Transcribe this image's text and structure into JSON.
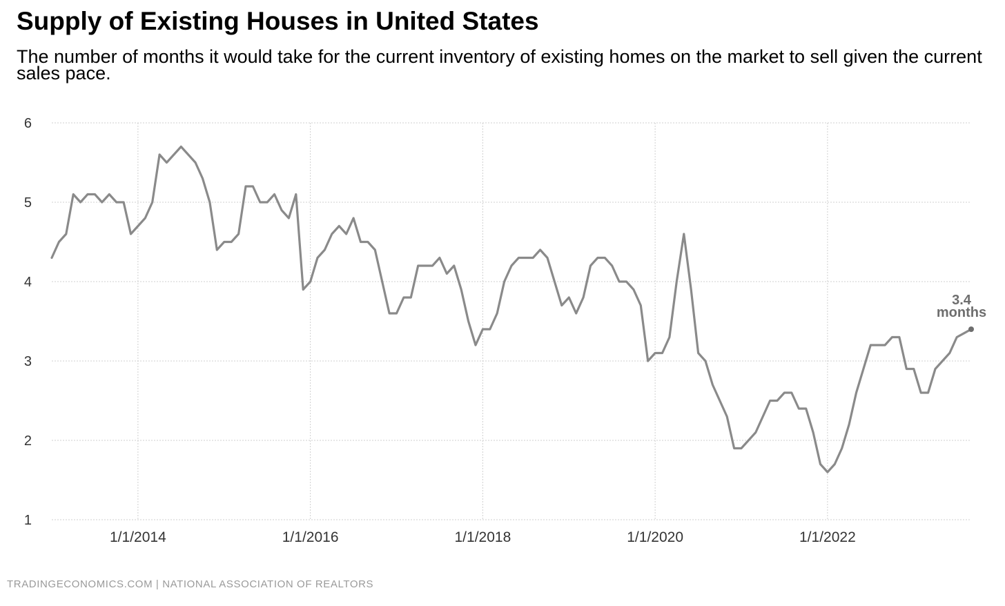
{
  "header": {
    "title": "Supply of Existing Houses in United States",
    "subtitle": "The number of months it would take for the current inventory of existing homes on the market to sell given the current sales pace."
  },
  "footer": {
    "source": "TRADINGECONOMICS.COM  |  NATIONAL ASSOCIATION OF REALTORS"
  },
  "chart_data": {
    "type": "line",
    "title": "Supply of Existing Houses in United States",
    "xlabel": "",
    "ylabel": "",
    "ylim": [
      1,
      6
    ],
    "yticks": [
      "1",
      "2",
      "3",
      "4",
      "5",
      "6"
    ],
    "xticks": [
      "1/1/2014",
      "1/1/2016",
      "1/1/2018",
      "1/1/2020",
      "1/1/2022"
    ],
    "grid": true,
    "line_color": "#8a8a8a",
    "x_start": "2013-01",
    "x_end": "2023-09",
    "series": [
      {
        "name": "",
        "x": [
          "2013-01",
          "2013-02",
          "2013-03",
          "2013-04",
          "2013-05",
          "2013-06",
          "2013-07",
          "2013-08",
          "2013-09",
          "2013-10",
          "2013-11",
          "2013-12",
          "2014-01",
          "2014-02",
          "2014-03",
          "2014-04",
          "2014-05",
          "2014-06",
          "2014-07",
          "2014-08",
          "2014-09",
          "2014-10",
          "2014-11",
          "2014-12",
          "2015-01",
          "2015-02",
          "2015-03",
          "2015-04",
          "2015-05",
          "2015-06",
          "2015-07",
          "2015-08",
          "2015-09",
          "2015-10",
          "2015-11",
          "2015-12",
          "2016-01",
          "2016-02",
          "2016-03",
          "2016-04",
          "2016-05",
          "2016-06",
          "2016-07",
          "2016-08",
          "2016-09",
          "2016-10",
          "2016-11",
          "2016-12",
          "2017-01",
          "2017-02",
          "2017-03",
          "2017-04",
          "2017-05",
          "2017-06",
          "2017-07",
          "2017-08",
          "2017-09",
          "2017-10",
          "2017-11",
          "2017-12",
          "2018-01",
          "2018-02",
          "2018-03",
          "2018-04",
          "2018-05",
          "2018-06",
          "2018-07",
          "2018-08",
          "2018-09",
          "2018-10",
          "2018-11",
          "2018-12",
          "2019-01",
          "2019-02",
          "2019-03",
          "2019-04",
          "2019-05",
          "2019-06",
          "2019-07",
          "2019-08",
          "2019-09",
          "2019-10",
          "2019-11",
          "2019-12",
          "2020-01",
          "2020-02",
          "2020-03",
          "2020-04",
          "2020-05",
          "2020-06",
          "2020-07",
          "2020-08",
          "2020-09",
          "2020-10",
          "2020-11",
          "2020-12",
          "2021-01",
          "2021-02",
          "2021-03",
          "2021-04",
          "2021-05",
          "2021-06",
          "2021-07",
          "2021-08",
          "2021-09",
          "2021-10",
          "2021-11",
          "2021-12",
          "2022-01",
          "2022-02",
          "2022-03",
          "2022-04",
          "2022-05",
          "2022-06",
          "2022-07",
          "2022-08",
          "2022-09",
          "2022-10",
          "2022-11",
          "2022-12",
          "2023-01",
          "2023-02",
          "2023-03",
          "2023-04",
          "2023-05",
          "2023-06",
          "2023-07",
          "2023-08",
          "2023-09"
        ],
        "values": [
          4.3,
          4.5,
          4.6,
          5.1,
          5.0,
          5.1,
          5.1,
          5.0,
          5.1,
          5.0,
          5.0,
          4.6,
          4.7,
          4.8,
          5.0,
          5.6,
          5.5,
          5.6,
          5.7,
          5.6,
          5.5,
          5.3,
          5.0,
          4.4,
          4.5,
          4.5,
          4.6,
          5.2,
          5.2,
          5.0,
          5.0,
          5.1,
          4.9,
          4.8,
          5.1,
          3.9,
          4.0,
          4.3,
          4.4,
          4.6,
          4.7,
          4.6,
          4.8,
          4.5,
          4.5,
          4.4,
          4.0,
          3.6,
          3.6,
          3.8,
          3.8,
          4.2,
          4.2,
          4.2,
          4.3,
          4.1,
          4.2,
          3.9,
          3.5,
          3.2,
          3.4,
          3.4,
          3.6,
          4.0,
          4.2,
          4.3,
          4.3,
          4.3,
          4.4,
          4.3,
          4.0,
          3.7,
          3.8,
          3.6,
          3.8,
          4.2,
          4.3,
          4.3,
          4.2,
          4.0,
          4.0,
          3.9,
          3.7,
          3.0,
          3.1,
          3.1,
          3.3,
          4.0,
          4.6,
          3.9,
          3.1,
          3.0,
          2.7,
          2.5,
          2.3,
          1.9,
          1.9,
          2.0,
          2.1,
          2.3,
          2.5,
          2.5,
          2.6,
          2.6,
          2.4,
          2.4,
          2.1,
          1.7,
          1.6,
          1.7,
          1.9,
          2.2,
          2.6,
          2.9,
          3.2,
          3.2,
          3.2,
          3.3,
          3.3,
          2.9,
          2.9,
          2.6,
          2.6,
          2.9,
          3.0,
          3.1,
          3.3,
          3.35,
          3.4
        ]
      }
    ],
    "annotation": {
      "value": "3.4",
      "unit": "months",
      "color": "#6e6e6e"
    }
  }
}
